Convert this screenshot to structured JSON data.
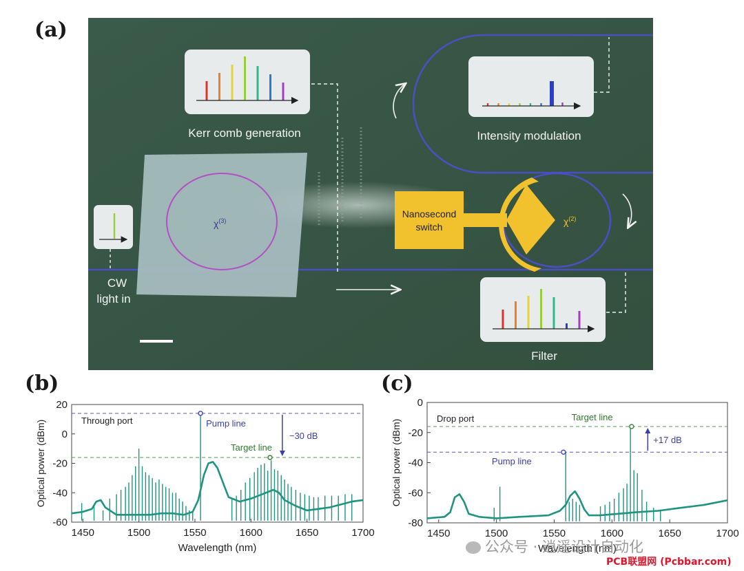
{
  "panels": {
    "a": "(a)",
    "b": "(b)",
    "c": "(c)"
  },
  "micrograph": {
    "kerr_label": "Kerr comb generation",
    "intensity_label": "Intensity modulation",
    "filter_label": "Filter",
    "cw_label_1": "CW",
    "cw_label_2": "light in",
    "chi3_label": "χ",
    "chi3_sup": "(3)",
    "chi2_label": "χ",
    "chi2_sup": "(2)",
    "switch_label_1": "Nanosecond",
    "switch_label_2": "switch",
    "colors": {
      "background": "#3c5b4a",
      "waveguide": "#4b4fc4",
      "electrode": "#f2c12e",
      "chip": "#a9bfc2",
      "ring": "#b24fc4"
    },
    "kerr_lines": [
      "#d9342b",
      "#ef7d22",
      "#e6d33a",
      "#9acd3b",
      "#2eb88a",
      "#2b7bd6",
      "#a33cc9"
    ],
    "filter_lines": [
      "#d9342b",
      "#ef7d22",
      "#e6d33a",
      "#9acd3b",
      "#2eb88a",
      "#2b3fc4",
      "#a33cc9"
    ]
  },
  "chart_data": [
    {
      "type": "line",
      "panel": "b",
      "annotation": "Through port",
      "xlabel": "Wavelength (nm)",
      "ylabel": "Optical power  (dBm)",
      "xlim": [
        1440,
        1700
      ],
      "ylim": [
        -60,
        20
      ],
      "xticks": [
        1450,
        1500,
        1550,
        1600,
        1650,
        1700
      ],
      "yticks": [
        -60,
        -40,
        -20,
        0,
        20
      ],
      "color": "#1e9480",
      "pump_label": "Pump line",
      "target_label": "Target line",
      "delta_label": "−30 dB",
      "pump_level": 14,
      "target_level": -16,
      "pump_x": 1555,
      "target_x": 1617,
      "envelope": {
        "x": [
          1440,
          1450,
          1458,
          1462,
          1466,
          1470,
          1480,
          1490,
          1500,
          1510,
          1520,
          1530,
          1540,
          1548,
          1553,
          1558,
          1562,
          1566,
          1570,
          1575,
          1580,
          1590,
          1600,
          1610,
          1620,
          1625,
          1630,
          1640,
          1650,
          1660,
          1670,
          1680,
          1690,
          1700
        ],
        "y": [
          -54,
          -53,
          -51,
          -46,
          -45,
          -50,
          -55,
          -55,
          -55,
          -55,
          -54,
          -54,
          -55,
          -53,
          -45,
          -28,
          -20,
          -19,
          -23,
          -33,
          -43,
          -46,
          -44,
          -41,
          -38,
          -40,
          -45,
          -49,
          -52,
          -51,
          -50,
          -48,
          -46,
          -45
        ]
      },
      "comb": {
        "x": [
          1449,
          1460,
          1468,
          1474,
          1480,
          1484,
          1488,
          1491,
          1494,
          1497,
          1500,
          1503,
          1506,
          1509,
          1512,
          1515,
          1518,
          1521,
          1524,
          1527,
          1530,
          1533,
          1536,
          1539,
          1542,
          1545,
          1548,
          1555,
          1583,
          1587,
          1591,
          1595,
          1599,
          1603,
          1606,
          1609,
          1612,
          1615,
          1618,
          1621,
          1624,
          1627,
          1630,
          1633,
          1636,
          1640,
          1644,
          1648,
          1652,
          1656,
          1660,
          1666,
          1672,
          1678,
          1684,
          1690
        ],
        "y": [
          -47,
          -48,
          -52,
          -44,
          -41,
          -38,
          -36,
          -33,
          -28,
          -22,
          -10,
          -22,
          -26,
          -28,
          -30,
          -33,
          -31,
          -34,
          -36,
          -37,
          -40,
          -40,
          -44,
          -46,
          -49,
          -52,
          -53,
          14,
          -44,
          -42,
          -38,
          -33,
          -30,
          -26,
          -23,
          -21,
          -20,
          -25,
          -18,
          -24,
          -25,
          -28,
          -31,
          -34,
          -36,
          -38,
          -40,
          -41,
          -42,
          -43,
          -43,
          -42,
          -42,
          -42,
          -41,
          -41
        ]
      }
    },
    {
      "type": "line",
      "panel": "c",
      "annotation": "Drop port",
      "xlabel": "Wavelength (nm)",
      "ylabel": "Optical power  (dBm)",
      "xlim": [
        1440,
        1700
      ],
      "ylim": [
        -80,
        0
      ],
      "xticks": [
        1450,
        1500,
        1550,
        1600,
        1650,
        1700
      ],
      "yticks": [
        -80,
        -60,
        -40,
        -20,
        0
      ],
      "color": "#1e9480",
      "pump_label": "Pump line",
      "target_label": "Target line",
      "delta_label": "+17 dB",
      "pump_level": -33,
      "target_level": -16,
      "pump_x": 1558,
      "target_x": 1617,
      "envelope": {
        "x": [
          1440,
          1455,
          1460,
          1464,
          1468,
          1472,
          1476,
          1485,
          1500,
          1520,
          1545,
          1555,
          1560,
          1564,
          1568,
          1572,
          1576,
          1580,
          1590,
          1605,
          1620,
          1640,
          1660,
          1680,
          1700
        ],
        "y": [
          -77,
          -76,
          -73,
          -63,
          -61,
          -66,
          -74,
          -76,
          -77,
          -76,
          -75,
          -72,
          -68,
          -62,
          -59,
          -64,
          -71,
          -75,
          -75,
          -74,
          -73,
          -72,
          -70,
          -68,
          -65
        ]
      },
      "comb": {
        "x": [
          1498,
          1503,
          1560,
          1563,
          1566,
          1569,
          1572,
          1590,
          1594,
          1598,
          1602,
          1606,
          1610,
          1613,
          1616,
          1619,
          1622,
          1626,
          1630,
          1636,
          1642
        ],
        "y": [
          -70,
          -56,
          -33,
          -66,
          -64,
          -66,
          -68,
          -69,
          -68,
          -66,
          -64,
          -60,
          -57,
          -54,
          -16,
          -45,
          -47,
          -58,
          -66,
          -70,
          -72
        ]
      }
    }
  ],
  "watermark": {
    "wechat": "公众号 · 逍遥设计自动化",
    "site": "PCB联盟网 (Pcbbar.com)"
  }
}
